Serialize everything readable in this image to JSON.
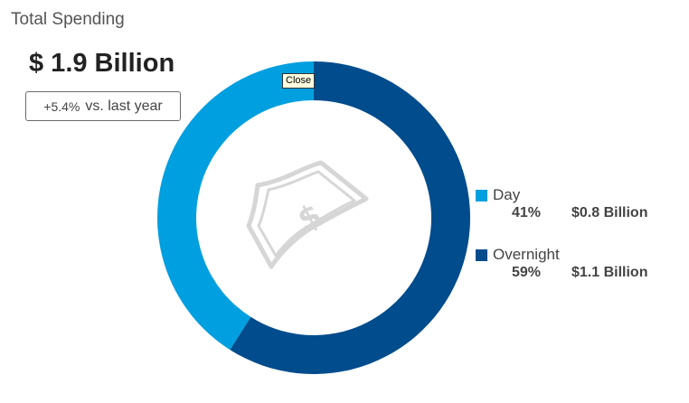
{
  "title": "Total Spending",
  "total": "$ 1.9 Billion",
  "change": {
    "percent": "+5.4%",
    "label": "vs. last year"
  },
  "tooltip": "Close",
  "center_icon": "money-bill-icon",
  "colors": {
    "day": "#009fe0",
    "overnight": "#004c8c"
  },
  "chart_data": {
    "type": "pie",
    "series": [
      {
        "name": "Day",
        "percent": 41,
        "value_label": "$0.8 Billion",
        "color": "#009fe0"
      },
      {
        "name": "Overnight",
        "percent": 59,
        "value_label": "$1.1 Billion",
        "color": "#004c8c"
      }
    ]
  },
  "legend": [
    {
      "name": "Day",
      "percent_label": "41%",
      "amount": "$0.8 Billion"
    },
    {
      "name": "Overnight",
      "percent_label": "59%",
      "amount": "$1.1 Billion"
    }
  ]
}
